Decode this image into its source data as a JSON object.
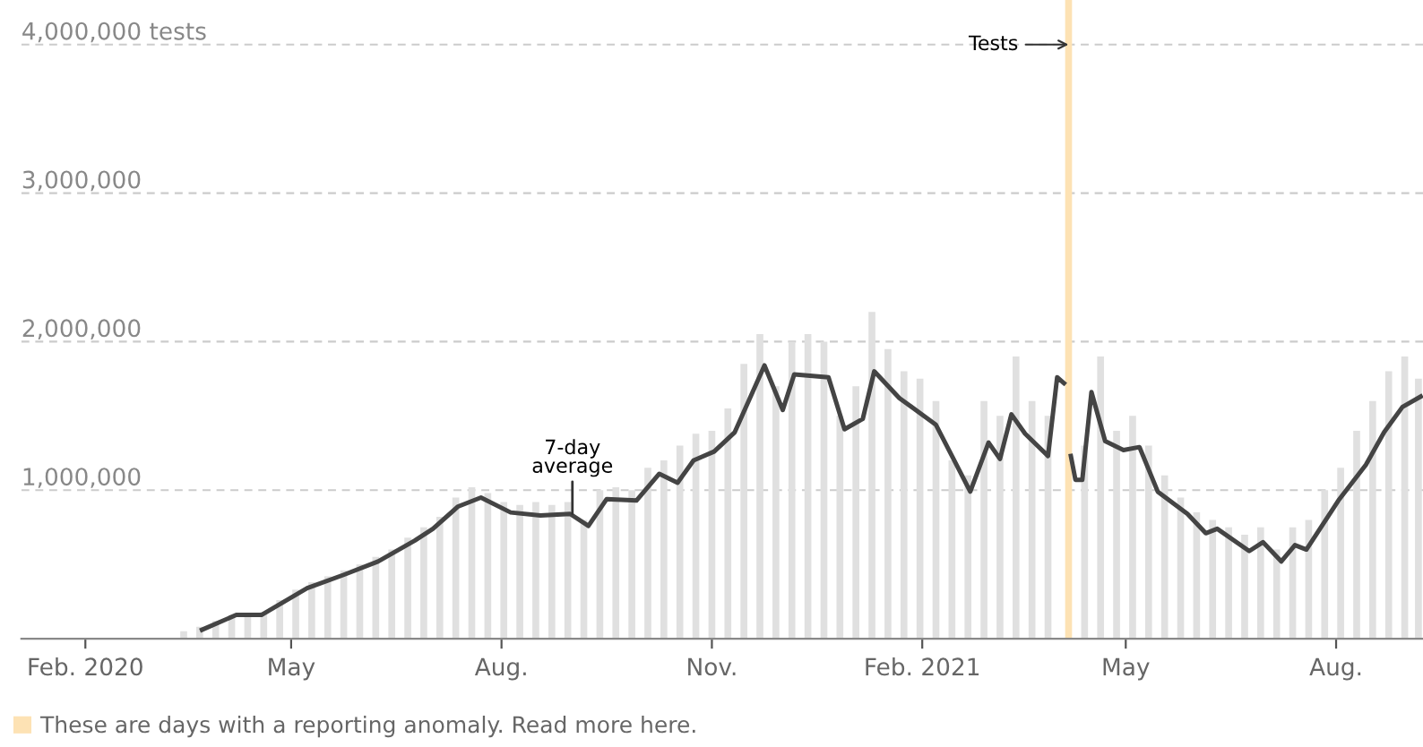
{
  "chart_data": {
    "type": "bar",
    "series": [
      {
        "color": "#e0e0e0",
        "x": [
          "2020-03-15",
          "2020-03-22",
          "2020-03-29",
          "2020-04-05",
          "2020-04-12",
          "2020-04-19",
          "2020-04-26",
          "2020-05-03",
          "2020-05-10",
          "2020-05-17",
          "2020-05-24",
          "2020-05-31",
          "2020-06-07",
          "2020-06-14",
          "2020-06-21",
          "2020-06-28",
          "2020-07-05",
          "2020-07-12",
          "2020-07-19",
          "2020-07-26",
          "2020-08-02",
          "2020-08-09",
          "2020-08-16",
          "2020-08-23",
          "2020-08-30",
          "2020-09-06",
          "2020-09-13",
          "2020-09-20",
          "2020-09-27",
          "2020-10-04",
          "2020-10-11",
          "2020-10-18",
          "2020-10-25",
          "2020-11-01",
          "2020-11-08",
          "2020-11-15",
          "2020-11-22",
          "2020-11-29",
          "2020-12-06",
          "2020-12-13",
          "2020-12-20",
          "2020-12-27",
          "2021-01-03",
          "2021-01-10",
          "2021-01-17",
          "2021-01-24",
          "2021-01-31",
          "2021-02-07",
          "2021-02-14",
          "2021-02-21",
          "2021-02-28",
          "2021-03-07",
          "2021-03-14",
          "2021-03-21",
          "2021-03-28",
          "2021-04-13",
          "2021-04-20",
          "2021-04-27",
          "2021-05-04",
          "2021-05-11",
          "2021-05-18",
          "2021-05-25",
          "2021-06-01",
          "2021-06-08",
          "2021-06-15",
          "2021-06-22",
          "2021-06-29",
          "2021-07-06",
          "2021-07-13",
          "2021-07-20",
          "2021-07-27",
          "2021-08-03",
          "2021-08-10",
          "2021-08-17",
          "2021-08-24",
          "2021-08-31",
          "2021-09-06"
        ],
        "values": [
          50000,
          80000,
          120000,
          160000,
          170000,
          180000,
          260000,
          330000,
          380000,
          420000,
          460000,
          500000,
          550000,
          600000,
          680000,
          750000,
          820000,
          950000,
          1020000,
          980000,
          920000,
          900000,
          920000,
          900000,
          920000,
          800000,
          1000000,
          1020000,
          1000000,
          1150000,
          1200000,
          1300000,
          1380000,
          1400000,
          1550000,
          1850000,
          2050000,
          1700000,
          2000000,
          2050000,
          2000000,
          1500000,
          1700000,
          2200000,
          1950000,
          1800000,
          1750000,
          1600000,
          1200000,
          1100000,
          1600000,
          1500000,
          1900000,
          1600000,
          1500000,
          1300000,
          1900000,
          1400000,
          1500000,
          1300000,
          1100000,
          950000,
          850000,
          800000,
          750000,
          700000,
          750000,
          600000,
          750000,
          800000,
          1000000,
          1150000,
          1400000,
          1600000,
          1800000,
          1900000,
          1750000
        ]
      },
      {
        "name": "These are days with a reporting anomaly. Read more here.",
        "color": "#fde2b4",
        "x": [
          "2021-04-06"
        ],
        "values": [
          4300000
        ]
      },
      {
        "type": "line",
        "color": "#444444",
        "x": [
          "2020-03-23",
          "2020-04-07",
          "2020-04-18",
          "2020-05-08",
          "2020-05-24",
          "2020-06-08",
          "2020-06-24",
          "2020-07-02",
          "2020-07-13",
          "2020-07-23",
          "2020-08-05",
          "2020-08-18",
          "2020-08-31",
          "2020-09-08",
          "2020-09-16",
          "2020-09-29",
          "2020-10-09",
          "2020-10-17",
          "2020-10-24",
          "2020-11-02",
          "2020-11-11",
          "2020-11-24",
          "2020-12-02",
          "2020-12-07",
          "2020-12-22",
          "2020-12-29",
          "2021-01-06",
          "2021-01-11",
          "2021-01-22",
          "2021-02-07",
          "2021-02-22",
          "2021-03-02",
          "2021-03-07",
          "2021-03-12",
          "2021-03-18",
          "2021-03-28",
          "2021-04-01",
          "2021-04-04",
          "2021-04-06",
          "2021-04-07",
          "2021-04-09",
          "2021-04-12",
          "2021-04-16",
          "2021-04-22",
          "2021-04-30",
          "2021-05-07",
          "2021-05-15",
          "2021-05-28",
          "2021-06-05",
          "2021-06-10",
          "2021-06-24",
          "2021-06-30",
          "2021-07-08",
          "2021-07-14",
          "2021-07-19",
          "2021-08-02",
          "2021-08-14",
          "2021-08-22",
          "2021-08-30",
          "2021-09-07"
        ],
        "values": [
          60000,
          160000,
          160000,
          340000,
          430000,
          520000,
          660000,
          740000,
          890000,
          950000,
          850000,
          830000,
          840000,
          760000,
          940000,
          930000,
          1110000,
          1050000,
          1200000,
          1260000,
          1390000,
          1840000,
          1540000,
          1780000,
          1760000,
          1410000,
          1480000,
          1800000,
          1620000,
          1440000,
          990000,
          1320000,
          1210000,
          1510000,
          1380000,
          1230000,
          1760000,
          1720000,
          null,
          1230000,
          1070000,
          1070000,
          1660000,
          1330000,
          1270000,
          1290000,
          990000,
          840000,
          710000,
          740000,
          590000,
          650000,
          520000,
          630000,
          600000,
          930000,
          1170000,
          1390000,
          1560000,
          1630000
        ]
      }
    ],
    "xlim": [
      "2020-01-04",
      "2021-09-08"
    ],
    "xticks": [
      {
        "value": "2020-02-01",
        "label": "Feb. 2020"
      },
      {
        "value": "2020-05-01",
        "label": "May"
      },
      {
        "value": "2020-08-01",
        "label": "Aug."
      },
      {
        "value": "2020-11-01",
        "label": "Nov."
      },
      {
        "value": "2021-02-01",
        "label": "Feb. 2021"
      },
      {
        "value": "2021-05-01",
        "label": "May"
      },
      {
        "value": "2021-08-01",
        "label": "Aug."
      }
    ],
    "ylim": [
      0,
      4300000
    ],
    "yticks": [
      {
        "value": 1000000,
        "label": "1,000,000"
      },
      {
        "value": 2000000,
        "label": "2,000,000"
      },
      {
        "value": 3000000,
        "label": "3,000,000"
      },
      {
        "value": 4000000,
        "label": "4,000,000 tests"
      }
    ],
    "grid": "y",
    "legend": "bottom left",
    "line_style": "solid",
    "annotations": [
      {
        "text": "7-day\naverage",
        "x": "2020-09-01",
        "y": 840000
      },
      {
        "text": "Tests",
        "x": "2021-04-06",
        "y": 4000000
      }
    ]
  }
}
